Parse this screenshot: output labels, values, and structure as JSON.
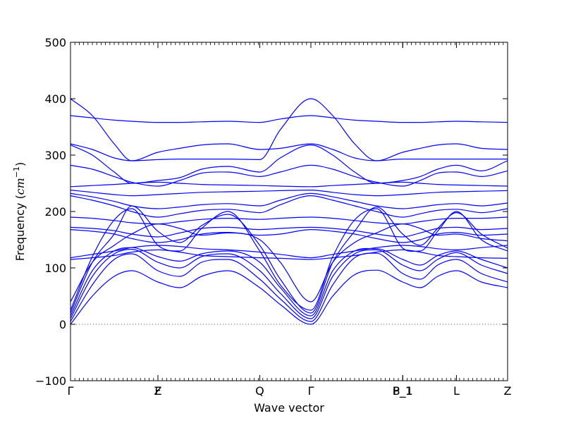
{
  "chart_data": {
    "type": "line",
    "xlabel": "Wave vector",
    "ylabel_text": "Frequency (",
    "ylabel_unit": "cm",
    "ylabel_exp": "−1",
    "ylabel_close": ")",
    "ylim": [
      -100,
      500
    ],
    "y_ticks": [
      -100,
      0,
      100,
      200,
      300,
      400,
      500
    ],
    "y_tick_labels": [
      "−100",
      "0",
      "100",
      "200",
      "300",
      "400",
      "500"
    ],
    "zero_line": true,
    "grid": false,
    "legend": "none",
    "color": "#0000ff",
    "path_ticks": [
      {
        "label": "Γ",
        "position": 0.0
      },
      {
        "label": "F",
        "position": 0.2
      },
      {
        "label": "Z",
        "position": 0.2
      },
      {
        "label": "Q",
        "position": 0.433
      },
      {
        "label": "Γ",
        "position": 0.55
      },
      {
        "label": "P_1",
        "position": 0.76
      },
      {
        "label": "B_1",
        "position": 0.76
      },
      {
        "label": "L",
        "position": 0.883
      },
      {
        "label": "Z",
        "position": 1.0
      }
    ],
    "segments": [
      {
        "from": "Γ",
        "to": "F / Z",
        "x_range": [
          0.0,
          0.2
        ]
      },
      {
        "from": "F / Z",
        "to": "Q",
        "x_range": [
          0.2,
          0.433
        ]
      },
      {
        "from": "Q",
        "to": "Γ",
        "x_range": [
          0.433,
          0.55
        ]
      },
      {
        "from": "Γ",
        "to": "P_1 / B_1",
        "x_range": [
          0.55,
          0.76
        ]
      },
      {
        "from": "P_1 / B_1",
        "to": "L",
        "x_range": [
          0.76,
          0.883
        ]
      },
      {
        "from": "L",
        "to": "Z",
        "x_range": [
          0.883,
          1.0
        ]
      }
    ],
    "series": [
      {
        "x": [
          0,
          0.05,
          0.1,
          0.14,
          0.2,
          0.25,
          0.3,
          0.36,
          0.433,
          0.48,
          0.55,
          0.6,
          0.65,
          0.7,
          0.76,
          0.8,
          0.84,
          0.883,
          0.94,
          1.0
        ],
        "values": [
          0,
          50,
          85,
          95,
          75,
          65,
          85,
          95,
          65,
          35,
          0,
          50,
          88,
          96,
          75,
          65,
          85,
          95,
          75,
          65
        ]
      },
      {
        "x": [
          0,
          0.05,
          0.1,
          0.14,
          0.2,
          0.25,
          0.3,
          0.36,
          0.433,
          0.48,
          0.55,
          0.6,
          0.65,
          0.7,
          0.76,
          0.8,
          0.84,
          0.883,
          0.94,
          1.0
        ],
        "values": [
          5,
          70,
          115,
          125,
          95,
          85,
          110,
          115,
          80,
          45,
          5,
          70,
          118,
          126,
          90,
          80,
          105,
          115,
          90,
          75
        ]
      },
      {
        "x": [
          0,
          0.05,
          0.1,
          0.14,
          0.2,
          0.25,
          0.3,
          0.36,
          0.433,
          0.48,
          0.55,
          0.6,
          0.65,
          0.7,
          0.76,
          0.8,
          0.84,
          0.883,
          0.94,
          1.0
        ],
        "values": [
          10,
          85,
          125,
          133,
          110,
          100,
          120,
          125,
          95,
          55,
          10,
          85,
          125,
          132,
          105,
          95,
          115,
          127,
          105,
          90
        ]
      },
      {
        "x": [
          0,
          0.05,
          0.1,
          0.14,
          0.2,
          0.25,
          0.3,
          0.36,
          0.433,
          0.48,
          0.55,
          0.6,
          0.65,
          0.7,
          0.76,
          0.8,
          0.84,
          0.883,
          0.94,
          1.0
        ],
        "values": [
          15,
          95,
          130,
          136,
          120,
          112,
          125,
          130,
          110,
          65,
          15,
          95,
          130,
          134,
          115,
          105,
          122,
          130,
          115,
          100
        ]
      },
      {
        "x": [
          0,
          0.05,
          0.1,
          0.14,
          0.2,
          0.25,
          0.3,
          0.36,
          0.433,
          0.48,
          0.55,
          0.6,
          0.65,
          0.7,
          0.76,
          0.8,
          0.84,
          0.883,
          0.94,
          1.0
        ],
        "values": [
          20,
          110,
          160,
          210,
          165,
          145,
          175,
          195,
          140,
          80,
          20,
          110,
          165,
          208,
          160,
          140,
          170,
          198,
          160,
          135
        ]
      },
      {
        "x": [
          0,
          0.05,
          0.1,
          0.14,
          0.2,
          0.25,
          0.3,
          0.36,
          0.433,
          0.48,
          0.55,
          0.6,
          0.65,
          0.7,
          0.76,
          0.8,
          0.84,
          0.883,
          0.94,
          1.0
        ],
        "values": [
          25,
          120,
          185,
          205,
          140,
          130,
          170,
          200,
          130,
          70,
          25,
          120,
          185,
          205,
          135,
          130,
          165,
          200,
          150,
          130
        ]
      },
      {
        "x": [
          0,
          0.05,
          0.1,
          0.14,
          0.2,
          0.25,
          0.3,
          0.36,
          0.433,
          0.48,
          0.55,
          0.6,
          0.65,
          0.7,
          0.76,
          0.8,
          0.84,
          0.883,
          0.94,
          1.0
        ],
        "values": [
          40,
          110,
          140,
          160,
          178,
          170,
          158,
          162,
          150,
          110,
          40,
          110,
          145,
          162,
          178,
          170,
          158,
          160,
          152,
          148
        ]
      },
      {
        "x": [
          0,
          0.05,
          0.1,
          0.14,
          0.2,
          0.25,
          0.3,
          0.36,
          0.433,
          0.48,
          0.55,
          0.6,
          0.65,
          0.7,
          0.76,
          0.8,
          0.84,
          0.883,
          0.94,
          1.0
        ],
        "values": [
          115,
          118,
          122,
          128,
          132,
          128,
          122,
          120,
          118,
          117,
          115,
          118,
          122,
          128,
          132,
          128,
          122,
          120,
          118,
          117
        ]
      },
      {
        "x": [
          0,
          0.05,
          0.1,
          0.14,
          0.2,
          0.25,
          0.3,
          0.36,
          0.433,
          0.48,
          0.55,
          0.6,
          0.65,
          0.7,
          0.76,
          0.8,
          0.84,
          0.883,
          0.94,
          1.0
        ],
        "values": [
          118,
          124,
          130,
          136,
          140,
          138,
          134,
          132,
          128,
          124,
          118,
          124,
          130,
          136,
          140,
          138,
          134,
          132,
          136,
          140
        ]
      },
      {
        "x": [
          0,
          0.05,
          0.1,
          0.14,
          0.2,
          0.25,
          0.3,
          0.36,
          0.433,
          0.48,
          0.55,
          0.6,
          0.65,
          0.7,
          0.76,
          0.8,
          0.84,
          0.883,
          0.94,
          1.0
        ],
        "values": [
          168,
          165,
          160,
          152,
          145,
          150,
          160,
          163,
          158,
          160,
          168,
          165,
          160,
          152,
          145,
          150,
          160,
          163,
          158,
          160
        ]
      },
      {
        "x": [
          0,
          0.05,
          0.1,
          0.14,
          0.2,
          0.25,
          0.3,
          0.36,
          0.433,
          0.48,
          0.55,
          0.6,
          0.65,
          0.7,
          0.76,
          0.8,
          0.84,
          0.883,
          0.94,
          1.0
        ],
        "values": [
          172,
          170,
          166,
          160,
          155,
          162,
          170,
          172,
          168,
          170,
          172,
          170,
          166,
          160,
          155,
          162,
          170,
          172,
          168,
          170
        ]
      },
      {
        "x": [
          0,
          0.05,
          0.1,
          0.14,
          0.2,
          0.25,
          0.3,
          0.36,
          0.433,
          0.48,
          0.55,
          0.6,
          0.65,
          0.7,
          0.76,
          0.8,
          0.84,
          0.883,
          0.94,
          1.0
        ],
        "values": [
          190,
          188,
          184,
          180,
          178,
          182,
          186,
          188,
          186,
          188,
          190,
          188,
          184,
          180,
          178,
          182,
          186,
          188,
          188,
          190
        ]
      },
      {
        "x": [
          0,
          0.05,
          0.1,
          0.14,
          0.2,
          0.25,
          0.3,
          0.36,
          0.433,
          0.48,
          0.55,
          0.6,
          0.65,
          0.7,
          0.76,
          0.8,
          0.84,
          0.883,
          0.94,
          1.0
        ],
        "values": [
          228,
          220,
          210,
          200,
          190,
          196,
          202,
          204,
          198,
          212,
          228,
          220,
          210,
          200,
          190,
          196,
          202,
          204,
          198,
          205
        ]
      },
      {
        "x": [
          0,
          0.05,
          0.1,
          0.14,
          0.2,
          0.25,
          0.3,
          0.36,
          0.433,
          0.48,
          0.55,
          0.6,
          0.65,
          0.7,
          0.76,
          0.8,
          0.84,
          0.883,
          0.94,
          1.0
        ],
        "values": [
          232,
          226,
          218,
          210,
          205,
          208,
          212,
          214,
          210,
          220,
          232,
          226,
          218,
          210,
          205,
          208,
          212,
          214,
          210,
          215
        ]
      },
      {
        "x": [
          0,
          0.05,
          0.1,
          0.14,
          0.2,
          0.25,
          0.3,
          0.36,
          0.433,
          0.48,
          0.55,
          0.6,
          0.65,
          0.7,
          0.76,
          0.8,
          0.84,
          0.883,
          0.94,
          1.0
        ],
        "values": [
          238,
          234,
          230,
          228,
          230,
          232,
          234,
          235,
          236,
          237,
          238,
          234,
          230,
          228,
          230,
          232,
          234,
          235,
          236,
          237
        ]
      },
      {
        "x": [
          0,
          0.05,
          0.1,
          0.14,
          0.2,
          0.25,
          0.3,
          0.36,
          0.433,
          0.48,
          0.55,
          0.6,
          0.65,
          0.7,
          0.76,
          0.8,
          0.84,
          0.883,
          0.94,
          1.0
        ],
        "values": [
          244,
          246,
          248,
          250,
          252,
          250,
          248,
          247,
          246,
          245,
          244,
          246,
          248,
          250,
          252,
          250,
          248,
          247,
          246,
          245
        ]
      },
      {
        "x": [
          0,
          0.05,
          0.1,
          0.14,
          0.2,
          0.25,
          0.3,
          0.36,
          0.433,
          0.48,
          0.55,
          0.6,
          0.65,
          0.7,
          0.76,
          0.8,
          0.84,
          0.883,
          0.94,
          1.0
        ],
        "values": [
          282,
          275,
          262,
          252,
          245,
          255,
          268,
          270,
          262,
          270,
          282,
          275,
          262,
          252,
          245,
          255,
          268,
          270,
          262,
          272
        ]
      },
      {
        "x": [
          0,
          0.05,
          0.1,
          0.14,
          0.2,
          0.25,
          0.3,
          0.36,
          0.433,
          0.48,
          0.55,
          0.6,
          0.65,
          0.7,
          0.76,
          0.8,
          0.84,
          0.883,
          0.94,
          1.0
        ],
        "values": [
          318,
          300,
          270,
          250,
          255,
          260,
          275,
          280,
          270,
          295,
          318,
          300,
          270,
          250,
          255,
          262,
          275,
          282,
          272,
          290
        ]
      },
      {
        "x": [
          0,
          0.05,
          0.1,
          0.14,
          0.2,
          0.25,
          0.3,
          0.36,
          0.433,
          0.48,
          0.55,
          0.6,
          0.65,
          0.7,
          0.76,
          0.8,
          0.84,
          0.883,
          0.94,
          1.0
        ],
        "values": [
          320,
          310,
          295,
          290,
          305,
          312,
          318,
          320,
          310,
          312,
          320,
          310,
          295,
          290,
          305,
          312,
          318,
          320,
          312,
          310
        ]
      },
      {
        "x": [
          0,
          0.05,
          0.1,
          0.14,
          0.2,
          0.25,
          0.3,
          0.36,
          0.433,
          0.48,
          0.55,
          0.6,
          0.65,
          0.7,
          0.76,
          0.8,
          0.84,
          0.883,
          0.94,
          1.0
        ],
        "values": [
          370,
          366,
          362,
          360,
          358,
          358,
          359,
          360,
          358,
          364,
          370,
          366,
          362,
          360,
          358,
          358,
          359,
          360,
          359,
          358
        ]
      },
      {
        "x": [
          0,
          0.05,
          0.1,
          0.14,
          0.2,
          0.25,
          0.3,
          0.36,
          0.433,
          0.48,
          0.55,
          0.6,
          0.65,
          0.7,
          0.76,
          0.8,
          0.84,
          0.883,
          0.94,
          1.0
        ],
        "values": [
          400,
          370,
          320,
          290,
          292,
          293,
          293,
          293,
          292,
          345,
          400,
          370,
          320,
          290,
          293,
          293,
          293,
          293,
          293,
          293
        ]
      }
    ]
  }
}
